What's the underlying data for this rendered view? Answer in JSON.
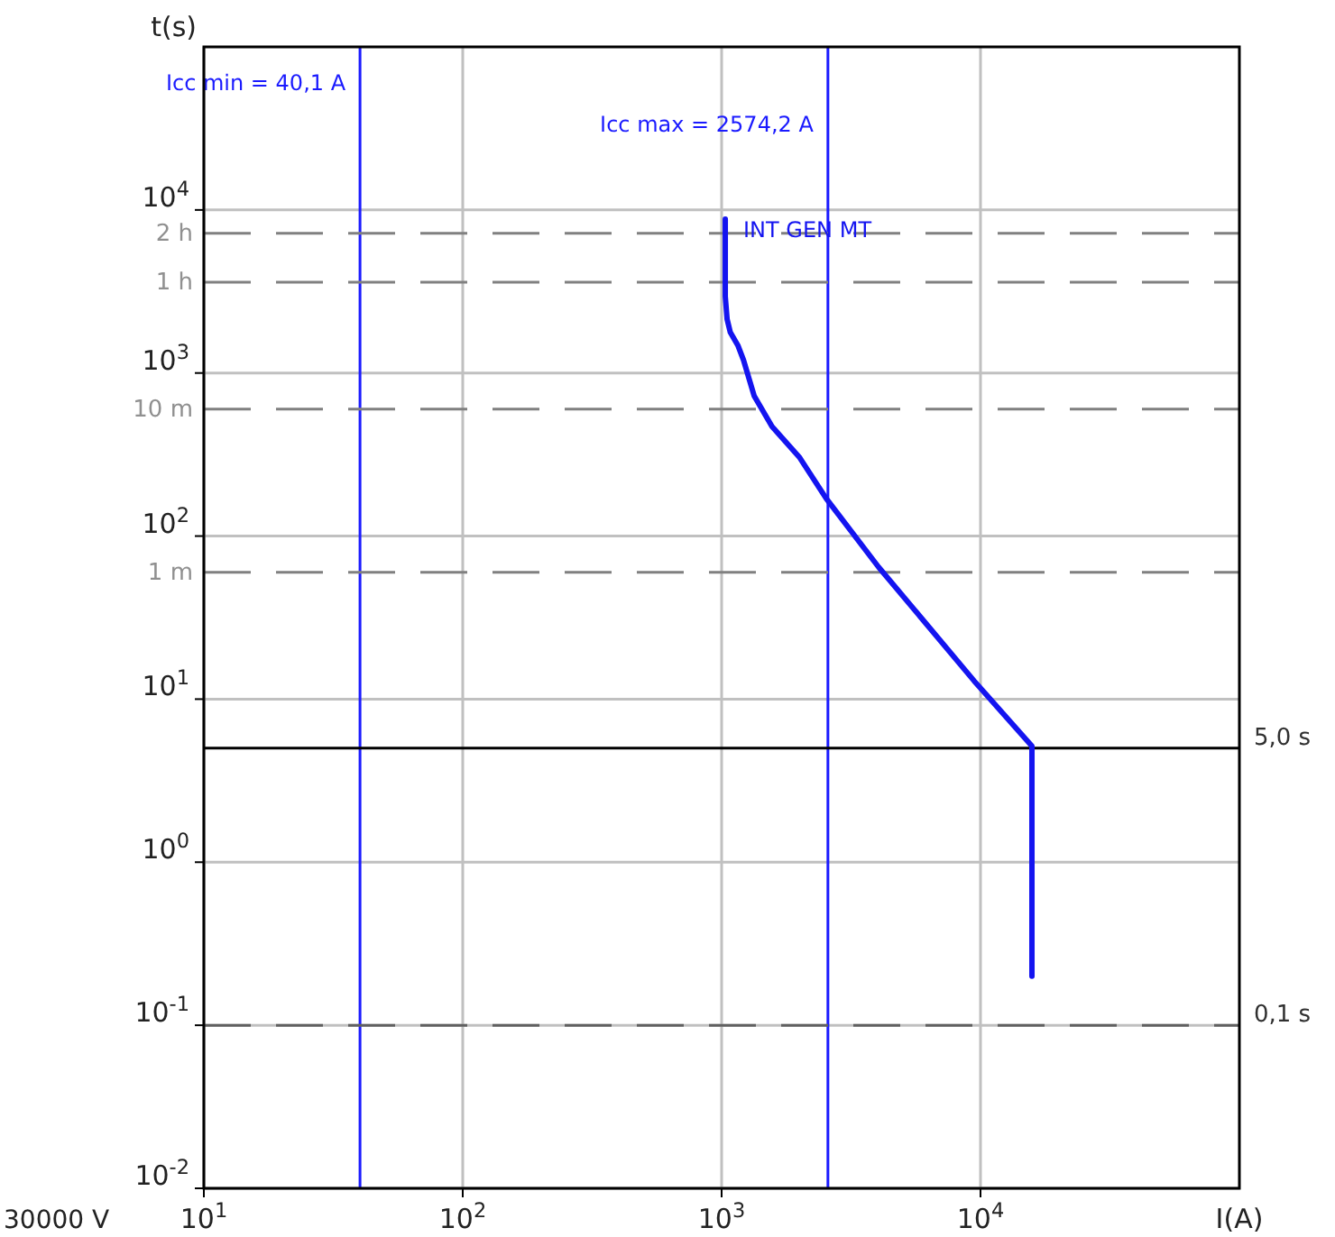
{
  "chart_data": {
    "type": "line",
    "xlabel": "I(A)",
    "ylabel": "t(s)",
    "log": "xy",
    "grid": true,
    "legend": false,
    "line_style": "solid",
    "marker": "none",
    "xlim": [
      10,
      100000
    ],
    "ylim": [
      0.01,
      100000
    ],
    "xticks": [
      {
        "value": 10,
        "label": "10$^{1}$"
      },
      {
        "value": 100,
        "label": "10$^{2}$"
      },
      {
        "value": 1000,
        "label": "10$^{3}$"
      },
      {
        "value": 10000,
        "label": "10$^{4}$"
      }
    ],
    "yticks": [
      {
        "value": 0.01,
        "label": "10$^{-2}$"
      },
      {
        "value": 0.1,
        "label": "10$^{-1}$"
      },
      {
        "value": 1,
        "label": "10$^{0}$"
      },
      {
        "value": 10,
        "label": "10$^{1}$"
      },
      {
        "value": 100,
        "label": "10$^{2}$"
      },
      {
        "value": 1000,
        "label": "10$^{3}$"
      },
      {
        "value": 10000,
        "label": "10$^{4}$"
      }
    ],
    "series": [
      {
        "name": "INT GEN MT",
        "color": "#1414f0",
        "x": [
          1033,
          1033,
          1050,
          1080,
          1155,
          1215,
          1335,
          1565,
          1995,
          2535,
          4040,
          9460,
          15800,
          15800,
          15800
        ],
        "values": [
          8800,
          2950,
          2140,
          1780,
          1480,
          1200,
          725,
          470,
          305,
          170,
          64.5,
          12.9,
          5.16,
          4.2,
          0.2
        ]
      }
    ],
    "ref_lines": [
      {
        "axis": "x",
        "value": 40.1,
        "label": "Icc min = 40,1 A",
        "color": "#1a1aff",
        "line_style": "solid"
      },
      {
        "axis": "x",
        "value": 2574.2,
        "label": "Icc max = 2574,2 A",
        "color": "#1a1aff",
        "line_style": "solid"
      },
      {
        "axis": "y",
        "value": 7200,
        "label": "2 h",
        "color": "#808080",
        "line_style": "dashed"
      },
      {
        "axis": "y",
        "value": 3600,
        "label": "1 h",
        "color": "#808080",
        "line_style": "dashed"
      },
      {
        "axis": "y",
        "value": 600,
        "label": "10 m",
        "color": "#808080",
        "line_style": "dashed"
      },
      {
        "axis": "y",
        "value": 60,
        "label": "1 m",
        "color": "#808080",
        "line_style": "dashed"
      },
      {
        "axis": "y",
        "value": 5,
        "label": "5,0 s",
        "color": "#000000",
        "line_style": "solid"
      },
      {
        "axis": "y",
        "value": 0.1,
        "label": "0,1 s",
        "color": "#606060",
        "line_style": "dashed"
      }
    ],
    "annotations": [
      "30000 V"
    ]
  }
}
